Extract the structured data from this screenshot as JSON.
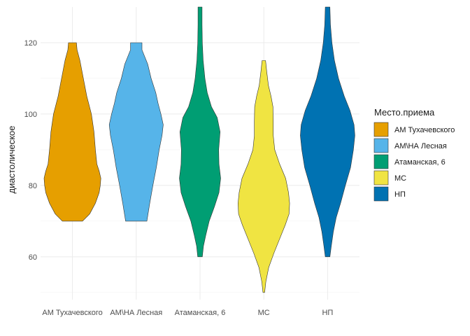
{
  "chart_data": {
    "type": "violin",
    "title": "",
    "xlabel": "",
    "ylabel": "диастолическое",
    "ylim": [
      48,
      130
    ],
    "yticks": [
      60,
      80,
      100,
      120
    ],
    "grid": true,
    "legend": {
      "title": "Место.приема",
      "placement": "right"
    },
    "categories": [
      "АМ Тухачевского",
      "АМ\\НА Лесная",
      "Атаманская, 6",
      "МС",
      "НП"
    ],
    "series": [
      {
        "name": "АМ Тухачевского",
        "color": "#E69F00",
        "min": 70,
        "max": 120,
        "profile": [
          [
            70,
            0.35
          ],
          [
            72,
            0.6
          ],
          [
            75,
            0.8
          ],
          [
            78,
            0.93
          ],
          [
            80,
            0.97
          ],
          [
            82,
            0.99
          ],
          [
            84,
            0.93
          ],
          [
            86,
            0.85
          ],
          [
            90,
            0.8
          ],
          [
            95,
            0.75
          ],
          [
            100,
            0.66
          ],
          [
            105,
            0.5
          ],
          [
            110,
            0.38
          ],
          [
            115,
            0.26
          ],
          [
            118,
            0.16
          ],
          [
            120,
            0.14
          ]
        ]
      },
      {
        "name": "АМ\\НА Лесная",
        "color": "#56B4E9",
        "min": 70,
        "max": 120,
        "profile": [
          [
            70,
            0.37
          ],
          [
            75,
            0.47
          ],
          [
            80,
            0.58
          ],
          [
            85,
            0.7
          ],
          [
            90,
            0.8
          ],
          [
            94,
            0.9
          ],
          [
            97,
            0.94
          ],
          [
            100,
            0.86
          ],
          [
            103,
            0.76
          ],
          [
            106,
            0.68
          ],
          [
            110,
            0.52
          ],
          [
            114,
            0.4
          ],
          [
            118,
            0.2
          ],
          [
            120,
            0.2
          ]
        ]
      },
      {
        "name": "Атаманская, 6",
        "color": "#009E73",
        "min": 60,
        "max": 130,
        "profile": [
          [
            60,
            0.08
          ],
          [
            63,
            0.12
          ],
          [
            66,
            0.2
          ],
          [
            70,
            0.32
          ],
          [
            74,
            0.5
          ],
          [
            78,
            0.66
          ],
          [
            82,
            0.72
          ],
          [
            86,
            0.66
          ],
          [
            90,
            0.65
          ],
          [
            95,
            0.7
          ],
          [
            99,
            0.6
          ],
          [
            102,
            0.4
          ],
          [
            106,
            0.25
          ],
          [
            110,
            0.17
          ],
          [
            115,
            0.11
          ],
          [
            120,
            0.08
          ],
          [
            125,
            0.07
          ],
          [
            130,
            0.07
          ]
        ]
      },
      {
        "name": "МС",
        "color": "#F0E442",
        "min": 50,
        "max": 115,
        "profile": [
          [
            50,
            0.03
          ],
          [
            53,
            0.07
          ],
          [
            57,
            0.17
          ],
          [
            61,
            0.35
          ],
          [
            65,
            0.55
          ],
          [
            69,
            0.75
          ],
          [
            72,
            0.88
          ],
          [
            75,
            0.9
          ],
          [
            78,
            0.86
          ],
          [
            82,
            0.76
          ],
          [
            86,
            0.55
          ],
          [
            90,
            0.38
          ],
          [
            94,
            0.33
          ],
          [
            98,
            0.33
          ],
          [
            102,
            0.32
          ],
          [
            105,
            0.25
          ],
          [
            108,
            0.16
          ],
          [
            112,
            0.1
          ],
          [
            115,
            0.06
          ]
        ]
      },
      {
        "name": "НП",
        "color": "#0072B2",
        "min": 60,
        "max": 130,
        "profile": [
          [
            60,
            0.08
          ],
          [
            63,
            0.13
          ],
          [
            67,
            0.2
          ],
          [
            71,
            0.3
          ],
          [
            75,
            0.45
          ],
          [
            80,
            0.62
          ],
          [
            85,
            0.8
          ],
          [
            90,
            0.9
          ],
          [
            94,
            0.95
          ],
          [
            97,
            0.92
          ],
          [
            101,
            0.78
          ],
          [
            105,
            0.58
          ],
          [
            110,
            0.38
          ],
          [
            115,
            0.24
          ],
          [
            120,
            0.15
          ],
          [
            125,
            0.1
          ],
          [
            130,
            0.08
          ]
        ]
      }
    ]
  }
}
